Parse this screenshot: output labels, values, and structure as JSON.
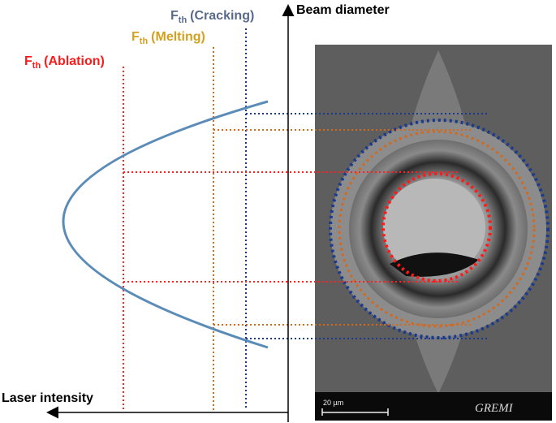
{
  "axes": {
    "y_label": "Beam diameter",
    "x_label": "Laser intensity"
  },
  "thresholds": [
    {
      "symbol": "F",
      "subscript": "th",
      "text": "(Cracking)"
    },
    {
      "symbol": "F",
      "subscript": "th",
      "text": "(Melting)"
    },
    {
      "symbol": "F",
      "subscript": "th",
      "text": "(Ablation)"
    }
  ],
  "image": {
    "scale_bar": "20 µm",
    "logo": "GREMI"
  }
}
